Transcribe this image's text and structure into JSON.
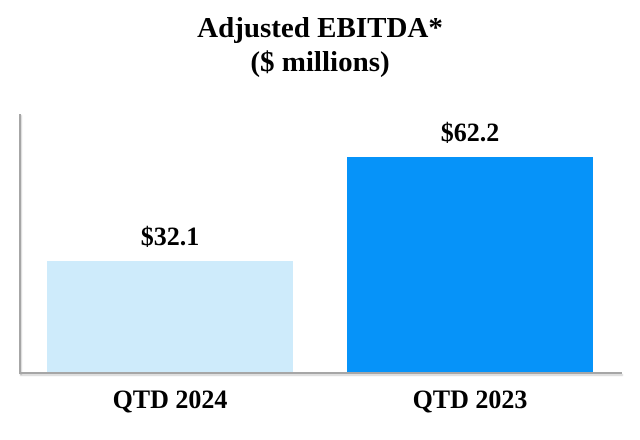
{
  "title": {
    "line1": "Adjusted EBITDA*",
    "line2": "($ millions)"
  },
  "chart_data": {
    "type": "bar",
    "title": "Adjusted EBITDA*",
    "subtitle": "($ millions)",
    "categories": [
      "QTD 2024",
      "QTD 2023"
    ],
    "values": [
      32.1,
      62.2
    ],
    "value_labels": [
      "$32.1",
      "$62.2"
    ],
    "series": [
      {
        "name": "Adjusted EBITDA",
        "values": [
          32.1,
          62.2
        ]
      }
    ],
    "xlabel": "",
    "ylabel": "",
    "ylim": [
      0,
      75
    ],
    "grid": false,
    "legend_position": "none",
    "bar_colors": [
      "#CEEBFB",
      "#0693F9"
    ],
    "axis_color": "#A6A6A6",
    "text_color": "#000000",
    "background_color": "#FFFFFF"
  }
}
